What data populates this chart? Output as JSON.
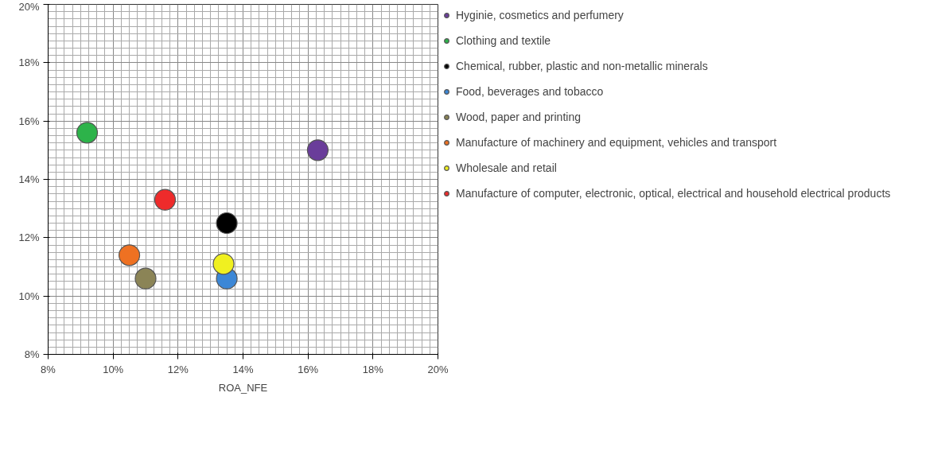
{
  "chart_data": {
    "type": "scatter",
    "xlabel": "ROA_NFE",
    "marker": "circle",
    "grid": true,
    "legend": "right",
    "xlim": [
      8,
      20
    ],
    "ylim": [
      8,
      20
    ],
    "xticks": [
      {
        "value": 8,
        "label": "8%"
      },
      {
        "value": 10,
        "label": "10%"
      },
      {
        "value": 12,
        "label": "12%"
      },
      {
        "value": 14,
        "label": "14%"
      },
      {
        "value": 16,
        "label": "16%"
      },
      {
        "value": 18,
        "label": "18%"
      },
      {
        "value": 20,
        "label": "20%"
      }
    ],
    "yticks": [
      {
        "value": 8,
        "label": "8%"
      },
      {
        "value": 10,
        "label": "10%"
      },
      {
        "value": 12,
        "label": "12%"
      },
      {
        "value": 14,
        "label": "14%"
      },
      {
        "value": 16,
        "label": "16%"
      },
      {
        "value": 18,
        "label": "18%"
      },
      {
        "value": 20,
        "label": "20%"
      }
    ],
    "series": [
      {
        "name": "Hyginie, cosmetics and perfumery",
        "color": "#6a3d9a",
        "x": [
          16.3
        ],
        "values": [
          15.0
        ]
      },
      {
        "name": "Clothing and textile",
        "color": "#2db34a",
        "x": [
          9.2
        ],
        "values": [
          15.6
        ]
      },
      {
        "name": "Chemical, rubber, plastic and non-metallic minerals",
        "color": "#000000",
        "x": [
          13.5
        ],
        "values": [
          12.5
        ]
      },
      {
        "name": "Food, beverages and tobacco",
        "color": "#3c87d6",
        "x": [
          13.5
        ],
        "values": [
          10.6
        ]
      },
      {
        "name": "Wood, paper and printing",
        "color": "#8b8456",
        "x": [
          11.0
        ],
        "values": [
          10.6
        ]
      },
      {
        "name": "Manufacture of machinery and equipment, vehicles and transport",
        "color": "#ee7122",
        "x": [
          10.5
        ],
        "values": [
          11.4
        ]
      },
      {
        "name": "Wholesale and retail",
        "color": "#f0f020",
        "x": [
          13.4
        ],
        "values": [
          11.1
        ]
      },
      {
        "name": "Manufacture of computer, electronic, optical, electrical and household electrical products",
        "color": "#ee2b2b",
        "x": [
          11.6
        ],
        "values": [
          13.3
        ]
      }
    ]
  }
}
